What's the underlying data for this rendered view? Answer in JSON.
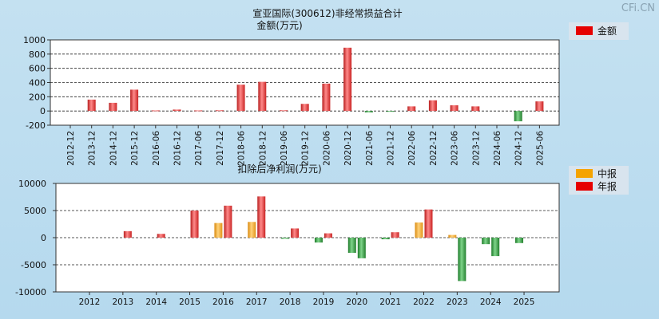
{
  "watermark": "CFi.CN",
  "colors": {
    "red": "#e83a3a",
    "orange": "#f3a424",
    "green": "#2e9a3b",
    "plot_bg": "#ffffff",
    "legend_bg": "#d8e4ee"
  },
  "chart_data": [
    {
      "type": "bar",
      "title": "宣亚国际(300612)非经常损益合计",
      "subtitle": "金额(万元)",
      "ylim": [
        -200,
        1000
      ],
      "yticks": [
        1000,
        800,
        600,
        400,
        200,
        0,
        -200
      ],
      "grid": true,
      "legend_position": "top-right",
      "legend": [
        {
          "label": "金额",
          "color": "red"
        }
      ],
      "categories": [
        "2012-12",
        "2013-12",
        "2014-12",
        "2015-12",
        "2016-06",
        "2016-12",
        "2017-06",
        "2017-12",
        "2018-06",
        "2018-12",
        "2019-06",
        "2019-12",
        "2020-06",
        "2020-12",
        "2021-06",
        "2021-12",
        "2022-06",
        "2022-12",
        "2023-06",
        "2023-12",
        "2024-06",
        "2024-12",
        "2025-06"
      ],
      "series": [
        {
          "name": "金额",
          "values": [
            0,
            160,
            115,
            300,
            8,
            20,
            8,
            10,
            370,
            410,
            10,
            100,
            385,
            890,
            -20,
            -5,
            65,
            150,
            80,
            65,
            0,
            -145,
            135
          ]
        }
      ]
    },
    {
      "type": "bar",
      "title": "扣除后净利润(万元)",
      "ylim": [
        -10000,
        10000
      ],
      "yticks": [
        10000,
        5000,
        0,
        -5000,
        -10000
      ],
      "grid": true,
      "legend_position": "top-right",
      "legend": [
        {
          "label": "中报",
          "color": "orange"
        },
        {
          "label": "年报",
          "color": "red"
        }
      ],
      "categories": [
        "2012",
        "2013",
        "2014",
        "2015",
        "2016",
        "2017",
        "2018",
        "2019",
        "2020",
        "2021",
        "2022",
        "2023",
        "2024",
        "2025"
      ],
      "series": [
        {
          "name": "中报",
          "values": [
            null,
            null,
            null,
            null,
            2700,
            2900,
            -200,
            -900,
            -2800,
            -300,
            2800,
            500,
            -1200,
            -1000
          ]
        },
        {
          "name": "年报",
          "values": [
            null,
            1200,
            700,
            5000,
            5900,
            7600,
            1700,
            800,
            -3800,
            1000,
            5200,
            -8000,
            -3400,
            null
          ]
        }
      ]
    }
  ]
}
